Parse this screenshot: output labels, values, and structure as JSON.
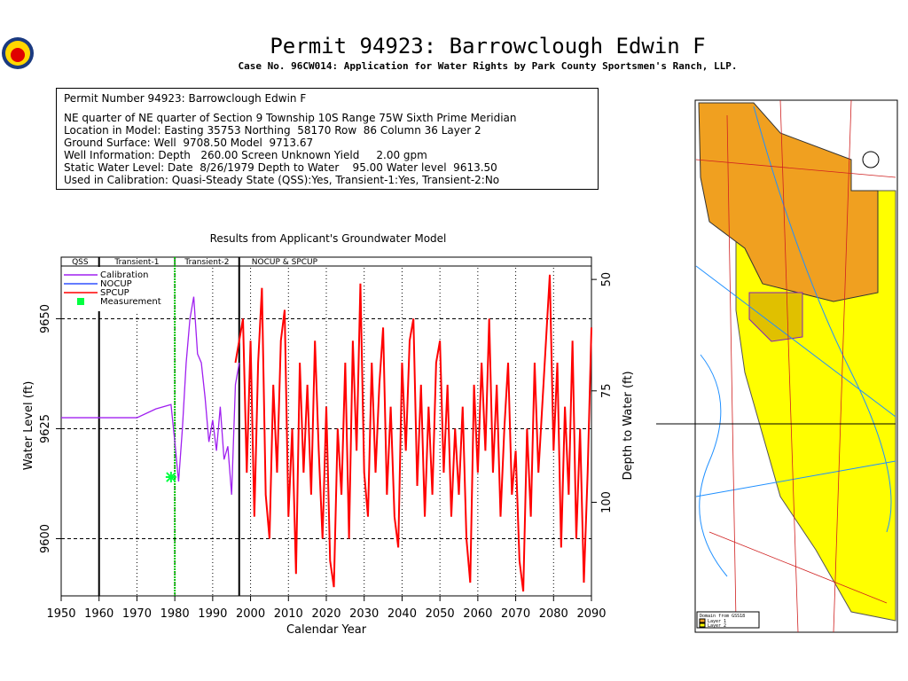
{
  "header": {
    "title": "Permit 94923:  Barrowclough Edwin F",
    "subtitle": "Case No. 96CW014: Application for Water Rights by Park County Sportsmen's Ranch, LLP."
  },
  "info": {
    "lines": [
      "Permit Number 94923: Barrowclough Edwin F",
      "NE quarter of NE quarter of Section 9 Township 10S Range 75W Sixth Prime Meridian",
      "Location in Model: Easting 35753 Northing  58170 Row  86 Column 36 Layer 2",
      "Ground Surface: Well  9708.50 Model  9713.67",
      "Well Information: Depth   260.00 Screen Unknown Yield     2.00 gpm",
      "Static Water Level: Date  8/26/1979 Depth to Water    95.00 Water level  9613.50",
      "Used in Calibration: Quasi-Steady State (QSS):Yes, Transient-1:Yes, Transient-2:No"
    ]
  },
  "chart_data": {
    "type": "line",
    "title": "Results from Applicant's Groundwater Model",
    "xlabel": "Calendar Year",
    "ylabel": "Water Level (ft)",
    "y2label": "Depth to Water (ft)",
    "periods": [
      {
        "label": "QSS",
        "start": 1950,
        "end": 1960
      },
      {
        "label": "Transient-1",
        "start": 1960,
        "end": 1980
      },
      {
        "label": "Transient-2",
        "start": 1980,
        "end": 1997
      },
      {
        "label": "NOCUP & SPCUP",
        "start": 1997,
        "end": 2090
      }
    ],
    "xlim": [
      1950,
      2090
    ],
    "xticks": [
      1950,
      1960,
      1970,
      1980,
      1990,
      2000,
      2010,
      2020,
      2030,
      2040,
      2050,
      2060,
      2070,
      2080,
      2090
    ],
    "ylim": [
      9587,
      9664
    ],
    "yticks": [
      9600,
      9625,
      9650
    ],
    "y2lim": [
      121,
      45
    ],
    "y2ticks": [
      50,
      75,
      100
    ],
    "grid": true,
    "series": [
      {
        "name": "Calibration",
        "color": "#a020f0",
        "x": [
          1950,
          1970,
          1975,
          1979,
          1980,
          1981,
          1982,
          1983,
          1984,
          1985,
          1986,
          1987,
          1988,
          1989,
          1990,
          1991,
          1992,
          1993,
          1994,
          1995,
          1996,
          1997
        ],
        "values": [
          9627.5,
          9627.5,
          9629.5,
          9630.5,
          9622,
          9613,
          9625,
          9640,
          9650,
          9655,
          9642,
          9640,
          9632,
          9622,
          9627,
          9620,
          9630,
          9618,
          9621,
          9610,
          9635,
          9640
        ]
      },
      {
        "name": "NOCUP",
        "color": "#3050ff",
        "x": [
          1996,
          1998,
          1999,
          2000
        ],
        "values": [
          9640,
          9650,
          9615,
          9645
        ]
      },
      {
        "name": "SPCUP",
        "color": "#ff0000",
        "x": [
          1996,
          1998,
          1999,
          2000,
          2001,
          2002,
          2003,
          2004,
          2005,
          2006,
          2007,
          2008,
          2009,
          2010,
          2011,
          2012,
          2013,
          2014,
          2015,
          2016,
          2017,
          2018,
          2019,
          2020,
          2021,
          2022,
          2023,
          2024,
          2025,
          2026,
          2027,
          2028,
          2029,
          2030,
          2031,
          2032,
          2033,
          2034,
          2035,
          2036,
          2037,
          2038,
          2039,
          2040,
          2041,
          2042,
          2043,
          2044,
          2045,
          2046,
          2047,
          2048,
          2049,
          2050,
          2051,
          2052,
          2053,
          2054,
          2055,
          2056,
          2057,
          2058,
          2059,
          2060,
          2061,
          2062,
          2063,
          2064,
          2065,
          2066,
          2067,
          2068,
          2069,
          2070,
          2071,
          2072,
          2073,
          2074,
          2075,
          2076,
          2077,
          2078,
          2079,
          2080,
          2081,
          2082,
          2083,
          2084,
          2085,
          2086,
          2087,
          2088,
          2089,
          2090
        ],
        "values": [
          9640,
          9650,
          9615,
          9645,
          9605,
          9640,
          9657,
          9610,
          9600,
          9635,
          9615,
          9645,
          9652,
          9605,
          9625,
          9592,
          9640,
          9615,
          9635,
          9610,
          9645,
          9620,
          9600,
          9630,
          9595,
          9589,
          9625,
          9610,
          9640,
          9600,
          9645,
          9620,
          9658,
          9615,
          9605,
          9640,
          9615,
          9635,
          9648,
          9610,
          9630,
          9605,
          9598,
          9640,
          9620,
          9645,
          9650,
          9612,
          9635,
          9605,
          9630,
          9610,
          9640,
          9645,
          9615,
          9635,
          9605,
          9625,
          9610,
          9630,
          9600,
          9590,
          9635,
          9615,
          9640,
          9620,
          9650,
          9615,
          9635,
          9605,
          9625,
          9640,
          9610,
          9620,
          9595,
          9588,
          9625,
          9605,
          9640,
          9615,
          9630,
          9645,
          9660,
          9620,
          9640,
          9598,
          9630,
          9610,
          9645,
          9600,
          9625,
          9590,
          9615,
          9648
        ]
      }
    ],
    "measurement": {
      "name": "Measurement",
      "color": "#00ff40",
      "x": 1979,
      "value": 9614
    }
  },
  "map": {
    "legend_title": "Domain from GSS18",
    "legend": [
      "Layer 1",
      "Layer 2"
    ]
  }
}
